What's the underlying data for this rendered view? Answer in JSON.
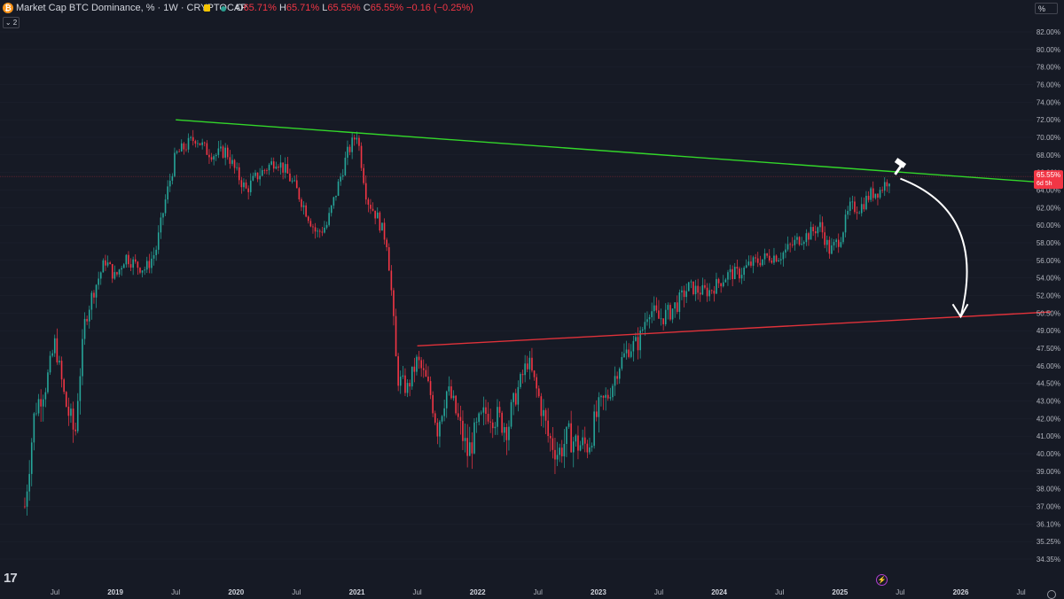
{
  "header": {
    "logo_glyph": "₿",
    "title": "Market Cap BTC Dominance, % · 1W · CRYPTOCAP",
    "open_key": "O",
    "open_value": "65.71%",
    "high_key": "H",
    "high_value": "65.71%",
    "low_key": "L",
    "low_value": "65.55%",
    "close_key": "C",
    "close_value": "65.55% −0.16 (−0.25%)",
    "indicator_toggle": "⌄ 2",
    "unit_label": "%"
  },
  "footer": {
    "brand_glyph": "17"
  },
  "colors": {
    "background": "#161a25",
    "up_candle": "#26a69a",
    "down_candle": "#f23645",
    "resistance_line": "#33d62a",
    "support_line": "#e0323a",
    "price_label_bg": "#f23645",
    "arrow": "#ffffff"
  },
  "chart_data": {
    "type": "candlestick",
    "symbol": "Market Cap BTC Dominance, %",
    "interval": "1W",
    "exchange": "CRYPTOCAP",
    "ylim": [
      34.35,
      82.0
    ],
    "y_ticks": [
      "82.00%",
      "80.00%",
      "78.00%",
      "76.00%",
      "74.00%",
      "72.00%",
      "70.00%",
      "68.00%",
      "66.00%",
      "64.00%",
      "62.00%",
      "60.00%",
      "58.00%",
      "56.00%",
      "54.00%",
      "52.00%",
      "50.50%",
      "49.00%",
      "47.50%",
      "46.00%",
      "44.50%",
      "43.00%",
      "42.00%",
      "41.00%",
      "40.00%",
      "39.00%",
      "38.00%",
      "37.00%",
      "36.10%",
      "35.25%",
      "34.35%"
    ],
    "x_ticks": [
      "Jul",
      "2019",
      "Jul",
      "2020",
      "Jul",
      "2021",
      "Jul",
      "2022",
      "Jul",
      "2023",
      "Jul",
      "2024",
      "Jul",
      "2025",
      "Jul",
      "2026",
      "Jul"
    ],
    "year_ticks": [
      "2019",
      "2020",
      "2021",
      "2022",
      "2023",
      "2024",
      "2025",
      "2026"
    ],
    "current_price_label": "65.55%",
    "countdown_label": "6d 5h",
    "series_path": [
      {
        "x": "2018-04",
        "y": 37.0
      },
      {
        "x": "2018-05",
        "y": 42.5
      },
      {
        "x": "2018-06",
        "y": 44.0
      },
      {
        "x": "2018-07",
        "y": 48.0
      },
      {
        "x": "2018-08",
        "y": 43.0
      },
      {
        "x": "2018-09",
        "y": 41.0
      },
      {
        "x": "2018-10",
        "y": 50.0
      },
      {
        "x": "2018-11",
        "y": 53.0
      },
      {
        "x": "2018-12",
        "y": 56.0
      },
      {
        "x": "2019-01",
        "y": 54.0
      },
      {
        "x": "2019-02",
        "y": 56.5
      },
      {
        "x": "2019-03",
        "y": 55.5
      },
      {
        "x": "2019-04",
        "y": 55.0
      },
      {
        "x": "2019-05",
        "y": 57.0
      },
      {
        "x": "2019-06",
        "y": 63.0
      },
      {
        "x": "2019-07",
        "y": 68.0
      },
      {
        "x": "2019-08",
        "y": 69.0
      },
      {
        "x": "2019-09",
        "y": 70.0
      },
      {
        "x": "2019-10",
        "y": 68.5
      },
      {
        "x": "2019-11",
        "y": 68.0
      },
      {
        "x": "2019-12",
        "y": 68.5
      },
      {
        "x": "2020-01",
        "y": 66.0
      },
      {
        "x": "2020-02",
        "y": 64.0
      },
      {
        "x": "2020-03",
        "y": 65.5
      },
      {
        "x": "2020-04",
        "y": 66.5
      },
      {
        "x": "2020-05",
        "y": 67.5
      },
      {
        "x": "2020-06",
        "y": 66.0
      },
      {
        "x": "2020-07",
        "y": 64.0
      },
      {
        "x": "2020-08",
        "y": 61.5
      },
      {
        "x": "2020-09",
        "y": 59.0
      },
      {
        "x": "2020-10",
        "y": 60.0
      },
      {
        "x": "2020-11",
        "y": 64.0
      },
      {
        "x": "2020-12",
        "y": 68.0
      },
      {
        "x": "2021-01",
        "y": 70.5
      },
      {
        "x": "2021-02",
        "y": 63.0
      },
      {
        "x": "2021-03",
        "y": 61.0
      },
      {
        "x": "2021-04",
        "y": 58.0
      },
      {
        "x": "2021-05",
        "y": 45.0
      },
      {
        "x": "2021-06",
        "y": 44.0
      },
      {
        "x": "2021-07",
        "y": 46.5
      },
      {
        "x": "2021-08",
        "y": 44.5
      },
      {
        "x": "2021-09",
        "y": 41.5
      },
      {
        "x": "2021-10",
        "y": 44.0
      },
      {
        "x": "2021-11",
        "y": 42.0
      },
      {
        "x": "2021-12",
        "y": 40.0
      },
      {
        "x": "2022-01",
        "y": 41.5
      },
      {
        "x": "2022-02",
        "y": 42.5
      },
      {
        "x": "2022-03",
        "y": 42.0
      },
      {
        "x": "2022-04",
        "y": 41.5
      },
      {
        "x": "2022-05",
        "y": 44.0
      },
      {
        "x": "2022-06",
        "y": 46.5
      },
      {
        "x": "2022-07",
        "y": 43.5
      },
      {
        "x": "2022-08",
        "y": 41.0
      },
      {
        "x": "2022-09",
        "y": 40.0
      },
      {
        "x": "2022-10",
        "y": 41.0
      },
      {
        "x": "2022-11",
        "y": 40.5
      },
      {
        "x": "2022-12",
        "y": 40.5
      },
      {
        "x": "2023-01",
        "y": 42.5
      },
      {
        "x": "2023-02",
        "y": 43.5
      },
      {
        "x": "2023-03",
        "y": 46.0
      },
      {
        "x": "2023-04",
        "y": 47.5
      },
      {
        "x": "2023-05",
        "y": 48.0
      },
      {
        "x": "2023-06",
        "y": 51.0
      },
      {
        "x": "2023-07",
        "y": 50.0
      },
      {
        "x": "2023-08",
        "y": 50.5
      },
      {
        "x": "2023-09",
        "y": 51.5
      },
      {
        "x": "2023-10",
        "y": 53.0
      },
      {
        "x": "2023-11",
        "y": 52.5
      },
      {
        "x": "2023-12",
        "y": 52.5
      },
      {
        "x": "2024-01",
        "y": 53.5
      },
      {
        "x": "2024-02",
        "y": 54.5
      },
      {
        "x": "2024-03",
        "y": 54.5
      },
      {
        "x": "2024-04",
        "y": 55.5
      },
      {
        "x": "2024-05",
        "y": 56.0
      },
      {
        "x": "2024-06",
        "y": 56.5
      },
      {
        "x": "2024-07",
        "y": 56.5
      },
      {
        "x": "2024-08",
        "y": 57.5
      },
      {
        "x": "2024-09",
        "y": 58.5
      },
      {
        "x": "2024-10",
        "y": 59.0
      },
      {
        "x": "2024-11",
        "y": 60.0
      },
      {
        "x": "2024-12",
        "y": 57.0
      },
      {
        "x": "2025-01",
        "y": 58.5
      },
      {
        "x": "2025-02",
        "y": 62.0
      },
      {
        "x": "2025-03",
        "y": 62.0
      },
      {
        "x": "2025-04",
        "y": 63.5
      },
      {
        "x": "2025-05",
        "y": 64.0
      },
      {
        "x": "2025-06",
        "y": 65.55
      }
    ],
    "annotations": {
      "resistance_line": {
        "from": {
          "x": "2019-07",
          "y": 72.0
        },
        "to": {
          "x": "2026-10",
          "y": 64.8
        }
      },
      "support_line": {
        "from": {
          "x": "2021-07",
          "y": 47.7
        },
        "to": {
          "x": "2026-10",
          "y": 50.6
        }
      },
      "projection_arrow": {
        "from": {
          "x": "2025-07",
          "y": 65.3
        },
        "to": {
          "x": "2026-01",
          "y": 50.2
        }
      },
      "current_price_line": 65.55
    }
  }
}
